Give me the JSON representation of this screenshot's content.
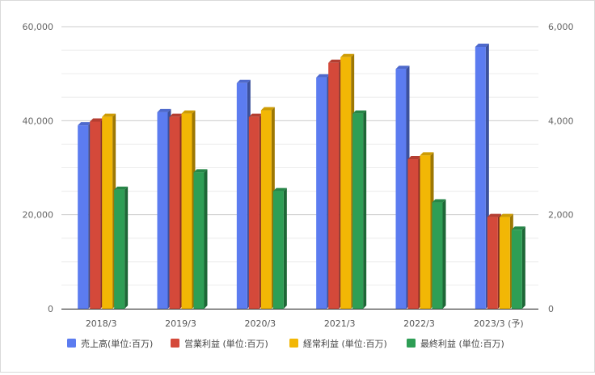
{
  "chart_data": {
    "type": "bar",
    "categories": [
      "2018/3",
      "2019/3",
      "2020/3",
      "2021/3",
      "2022/3",
      "2023/3 (予)"
    ],
    "series": [
      {
        "name": "売上高(単位:百万)",
        "axis": "left",
        "color": "#5c7cf0",
        "values": [
          39000,
          41800,
          48000,
          49200,
          51000,
          55700
        ]
      },
      {
        "name": "営業利益 (単位:百万)",
        "axis": "right",
        "color": "#d4493a",
        "values": [
          3980,
          4080,
          4080,
          5230,
          3180,
          1950
        ]
      },
      {
        "name": "経常利益 (単位:百万)",
        "axis": "right",
        "color": "#f2b705",
        "values": [
          4080,
          4150,
          4220,
          5350,
          3260,
          1950
        ]
      },
      {
        "name": "最終利益 (単位:百万)",
        "axis": "right",
        "color": "#2e9e55",
        "values": [
          2530,
          2900,
          2500,
          4150,
          2260,
          1680
        ]
      }
    ],
    "y_left": {
      "min": 0,
      "max": 60000,
      "ticks": [
        0,
        20000,
        40000,
        60000
      ],
      "tick_labels": [
        "0",
        "20,000",
        "40,000",
        "60,000"
      ]
    },
    "y_right": {
      "min": 0,
      "max": 6000,
      "ticks": [
        0,
        2000,
        4000,
        6000
      ],
      "tick_labels": [
        "0",
        "2,000",
        "4,000",
        "6,000"
      ]
    },
    "grid": true,
    "legend": "bottom"
  }
}
